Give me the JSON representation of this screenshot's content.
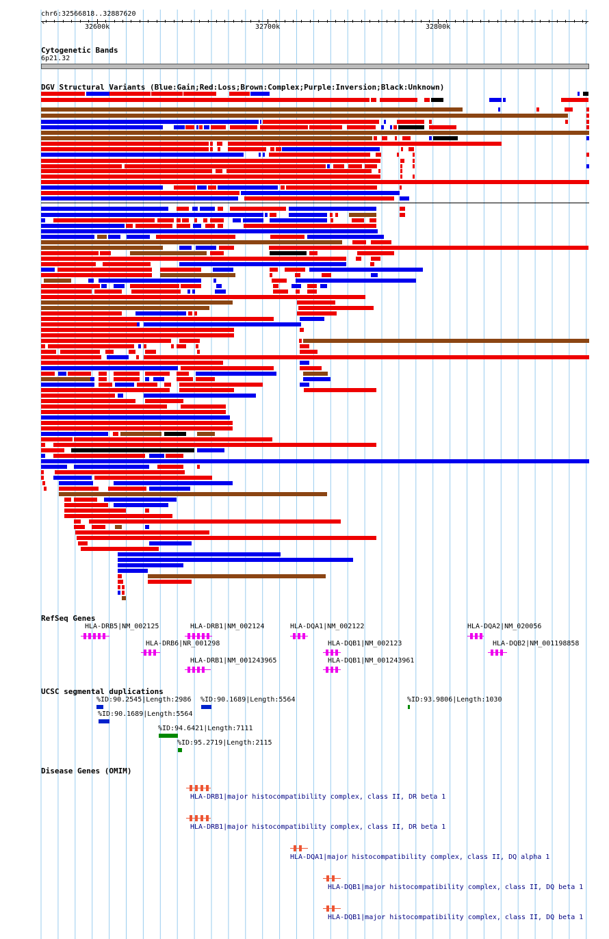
{
  "position": "chr6:32566818..32887620",
  "ruler": {
    "ticks": [
      "32600k",
      "32700k",
      "32800k"
    ]
  },
  "tracks": {
    "cytoband": {
      "title": "Cytogenetic Bands",
      "band": "6p21.32"
    },
    "dgv": {
      "title": "DGV Structural Variants (Blue:Gain;Red:Loss;Brown:Complex;Purple:Inversion;Black:Unknown)"
    },
    "refseq": {
      "title": "RefSeq Genes",
      "genes": [
        "HLA-DRB5|NM_002125",
        "HLA-DRB1|NM_002124",
        "HLA-DQA1|NM_002122",
        "HLA-DQA2|NM_020056",
        "HLA-DRB6|NR_001298",
        "HLA-DQB1|NM_002123",
        "HLA-DQB2|NM_001198858",
        "HLA-DRB1|NM_001243965",
        "HLA-DQB1|NM_001243961"
      ]
    },
    "segdup": {
      "title": "UCSC segmental duplications",
      "items": [
        "%ID:90.2545|Length:2986",
        "%ID:90.1689|Length:5564",
        "%ID:93.9806|Length:1030",
        "%ID:90.1689|Length:5564",
        "%ID:94.6421|Length:7111",
        "%ID:95.2719|Length:2115"
      ]
    },
    "omim": {
      "title": "Disease Genes (OMIM)",
      "items": [
        "HLA-DRB1|major histocompatibility complex, class II, DR beta 1",
        "HLA-DRB1|major histocompatibility complex, class II, DR beta 1",
        "HLA-DQA1|major histocompatibility complex, class II, DQ alpha 1",
        "HLA-DQB1|major histocompatibility complex, class II, DQ beta 1",
        "HLA-DQB1|major histocompatibility complex, class II, DQ beta 1"
      ]
    }
  },
  "colors": {
    "gain": "#0000ee",
    "loss": "#ee0000",
    "complex": "#8b4513",
    "unknown": "#000000",
    "gene": "#ee00ee",
    "omim": "#ee5533",
    "segdup_blue": "#0022cc",
    "segdup_green": "#008800",
    "grid": "#99ccee"
  }
}
